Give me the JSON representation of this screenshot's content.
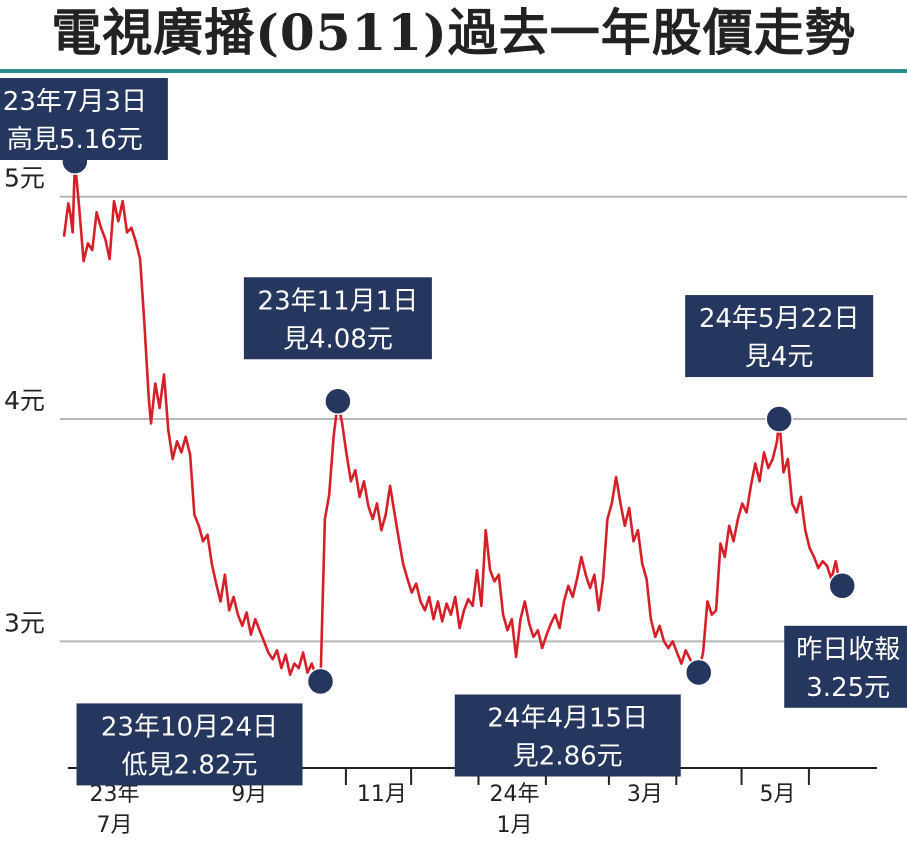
{
  "header": {
    "title": "電視廣播(0511)過去一年股價走勢"
  },
  "colors": {
    "line": "#d62029",
    "callout_bg": "#26375f",
    "marker": "#26375f",
    "title_rule": "#2a8f8d",
    "grid": "#b8b8b8",
    "axis": "#222222"
  },
  "chart_data": {
    "type": "line",
    "title": "電視廣播(0511)過去一年股價走勢",
    "xlabel": "",
    "ylabel": "",
    "ylim": [
      2.48,
      5.48
    ],
    "yticks": [
      {
        "value": 3,
        "label": "3元"
      },
      {
        "value": 4,
        "label": "4元"
      },
      {
        "value": 5,
        "label": "5元"
      }
    ],
    "xlim": [
      "2023-06-28",
      "2024-07-06"
    ],
    "xticks": [
      {
        "date": "2023-07-01",
        "label": [
          "23年",
          "7月"
        ]
      },
      {
        "date": "2023-09-01",
        "label": [
          "9月"
        ]
      },
      {
        "date": "2023-11-01",
        "label": [
          "11月"
        ]
      },
      {
        "date": "2024-01-01",
        "label": [
          "24年",
          "1月"
        ]
      },
      {
        "date": "2024-03-01",
        "label": [
          "3月"
        ]
      },
      {
        "date": "2024-05-01",
        "label": [
          "5月"
        ]
      }
    ],
    "grid": true,
    "series": [
      {
        "points": [
          [
            "2023-06-28",
            4.82
          ],
          [
            "2023-06-30",
            4.97
          ],
          [
            "2023-07-01",
            4.92
          ],
          [
            "2023-07-02",
            4.84
          ],
          [
            "2023-07-03",
            5.16
          ],
          [
            "2023-07-05",
            4.95
          ],
          [
            "2023-07-07",
            4.71
          ],
          [
            "2023-07-09",
            4.79
          ],
          [
            "2023-07-11",
            4.76
          ],
          [
            "2023-07-13",
            4.93
          ],
          [
            "2023-07-15",
            4.86
          ],
          [
            "2023-07-17",
            4.81
          ],
          [
            "2023-07-19",
            4.72
          ],
          [
            "2023-07-21",
            4.98
          ],
          [
            "2023-07-23",
            4.89
          ],
          [
            "2023-07-25",
            4.98
          ],
          [
            "2023-07-27",
            4.84
          ],
          [
            "2023-07-29",
            4.86
          ],
          [
            "2023-07-31",
            4.8
          ],
          [
            "2023-08-02",
            4.72
          ],
          [
            "2023-08-04",
            4.43
          ],
          [
            "2023-08-06",
            4.09
          ],
          [
            "2023-08-07",
            3.98
          ],
          [
            "2023-08-09",
            4.16
          ],
          [
            "2023-08-11",
            4.05
          ],
          [
            "2023-08-13",
            4.2
          ],
          [
            "2023-08-15",
            3.95
          ],
          [
            "2023-08-17",
            3.82
          ],
          [
            "2023-08-19",
            3.9
          ],
          [
            "2023-08-21",
            3.85
          ],
          [
            "2023-08-23",
            3.92
          ],
          [
            "2023-08-25",
            3.84
          ],
          [
            "2023-08-27",
            3.57
          ],
          [
            "2023-08-29",
            3.52
          ],
          [
            "2023-08-31",
            3.45
          ],
          [
            "2023-09-02",
            3.48
          ],
          [
            "2023-09-04",
            3.35
          ],
          [
            "2023-09-06",
            3.26
          ],
          [
            "2023-09-08",
            3.18
          ],
          [
            "2023-09-10",
            3.3
          ],
          [
            "2023-09-12",
            3.14
          ],
          [
            "2023-09-14",
            3.2
          ],
          [
            "2023-09-16",
            3.12
          ],
          [
            "2023-09-18",
            3.07
          ],
          [
            "2023-09-20",
            3.13
          ],
          [
            "2023-09-22",
            3.03
          ],
          [
            "2023-09-24",
            3.1
          ],
          [
            "2023-09-26",
            3.05
          ],
          [
            "2023-09-28",
            3.0
          ],
          [
            "2023-09-30",
            2.95
          ],
          [
            "2023-10-02",
            2.92
          ],
          [
            "2023-10-04",
            2.96
          ],
          [
            "2023-10-06",
            2.88
          ],
          [
            "2023-10-08",
            2.94
          ],
          [
            "2023-10-10",
            2.85
          ],
          [
            "2023-10-12",
            2.9
          ],
          [
            "2023-10-14",
            2.88
          ],
          [
            "2023-10-16",
            2.95
          ],
          [
            "2023-10-18",
            2.86
          ],
          [
            "2023-10-20",
            2.9
          ],
          [
            "2023-10-22",
            2.84
          ],
          [
            "2023-10-24",
            2.82
          ],
          [
            "2023-10-26",
            3.55
          ],
          [
            "2023-10-28",
            3.66
          ],
          [
            "2023-10-30",
            3.92
          ],
          [
            "2023-11-01",
            4.08
          ],
          [
            "2023-11-03",
            3.98
          ],
          [
            "2023-11-05",
            3.84
          ],
          [
            "2023-11-07",
            3.72
          ],
          [
            "2023-11-09",
            3.77
          ],
          [
            "2023-11-11",
            3.65
          ],
          [
            "2023-11-13",
            3.72
          ],
          [
            "2023-11-15",
            3.61
          ],
          [
            "2023-11-17",
            3.55
          ],
          [
            "2023-11-19",
            3.62
          ],
          [
            "2023-11-21",
            3.5
          ],
          [
            "2023-11-23",
            3.57
          ],
          [
            "2023-11-25",
            3.7
          ],
          [
            "2023-11-27",
            3.58
          ],
          [
            "2023-11-29",
            3.46
          ],
          [
            "2023-12-01",
            3.35
          ],
          [
            "2023-12-03",
            3.28
          ],
          [
            "2023-12-05",
            3.22
          ],
          [
            "2023-12-07",
            3.26
          ],
          [
            "2023-12-09",
            3.18
          ],
          [
            "2023-12-11",
            3.14
          ],
          [
            "2023-12-13",
            3.2
          ],
          [
            "2023-12-15",
            3.1
          ],
          [
            "2023-12-17",
            3.18
          ],
          [
            "2023-12-19",
            3.09
          ],
          [
            "2023-12-21",
            3.17
          ],
          [
            "2023-12-23",
            3.12
          ],
          [
            "2023-12-25",
            3.2
          ],
          [
            "2023-12-27",
            3.06
          ],
          [
            "2023-12-29",
            3.14
          ],
          [
            "2023-12-31",
            3.19
          ],
          [
            "2024-01-02",
            3.16
          ],
          [
            "2024-01-04",
            3.32
          ],
          [
            "2024-01-06",
            3.16
          ],
          [
            "2024-01-08",
            3.5
          ],
          [
            "2024-01-10",
            3.32
          ],
          [
            "2024-01-12",
            3.27
          ],
          [
            "2024-01-14",
            3.3
          ],
          [
            "2024-01-16",
            3.12
          ],
          [
            "2024-01-18",
            3.05
          ],
          [
            "2024-01-20",
            3.1
          ],
          [
            "2024-01-22",
            2.93
          ],
          [
            "2024-01-24",
            3.1
          ],
          [
            "2024-01-26",
            3.18
          ],
          [
            "2024-01-28",
            3.08
          ],
          [
            "2024-01-30",
            3.02
          ],
          [
            "2024-02-01",
            3.05
          ],
          [
            "2024-02-03",
            2.97
          ],
          [
            "2024-02-05",
            3.03
          ],
          [
            "2024-02-07",
            3.08
          ],
          [
            "2024-02-09",
            3.12
          ],
          [
            "2024-02-11",
            3.06
          ],
          [
            "2024-02-13",
            3.18
          ],
          [
            "2024-02-15",
            3.25
          ],
          [
            "2024-02-17",
            3.2
          ],
          [
            "2024-02-19",
            3.28
          ],
          [
            "2024-02-21",
            3.38
          ],
          [
            "2024-02-23",
            3.3
          ],
          [
            "2024-02-25",
            3.24
          ],
          [
            "2024-02-27",
            3.3
          ],
          [
            "2024-02-29",
            3.14
          ],
          [
            "2024-03-02",
            3.28
          ],
          [
            "2024-03-04",
            3.55
          ],
          [
            "2024-03-06",
            3.62
          ],
          [
            "2024-03-08",
            3.74
          ],
          [
            "2024-03-10",
            3.62
          ],
          [
            "2024-03-12",
            3.52
          ],
          [
            "2024-03-14",
            3.6
          ],
          [
            "2024-03-16",
            3.45
          ],
          [
            "2024-03-18",
            3.5
          ],
          [
            "2024-03-20",
            3.35
          ],
          [
            "2024-03-22",
            3.28
          ],
          [
            "2024-03-24",
            3.1
          ],
          [
            "2024-03-26",
            3.02
          ],
          [
            "2024-03-28",
            3.07
          ],
          [
            "2024-03-30",
            3.0
          ],
          [
            "2024-04-01",
            2.97
          ],
          [
            "2024-04-03",
            3.0
          ],
          [
            "2024-04-05",
            2.95
          ],
          [
            "2024-04-07",
            2.9
          ],
          [
            "2024-04-09",
            2.96
          ],
          [
            "2024-04-11",
            2.92
          ],
          [
            "2024-04-13",
            2.88
          ],
          [
            "2024-04-15",
            2.86
          ],
          [
            "2024-04-17",
            2.95
          ],
          [
            "2024-04-19",
            3.18
          ],
          [
            "2024-04-21",
            3.12
          ],
          [
            "2024-04-23",
            3.14
          ],
          [
            "2024-04-25",
            3.44
          ],
          [
            "2024-04-27",
            3.38
          ],
          [
            "2024-04-29",
            3.52
          ],
          [
            "2024-05-01",
            3.45
          ],
          [
            "2024-05-03",
            3.55
          ],
          [
            "2024-05-05",
            3.62
          ],
          [
            "2024-05-07",
            3.58
          ],
          [
            "2024-05-09",
            3.7
          ],
          [
            "2024-05-11",
            3.8
          ],
          [
            "2024-05-13",
            3.72
          ],
          [
            "2024-05-15",
            3.85
          ],
          [
            "2024-05-17",
            3.78
          ],
          [
            "2024-05-19",
            3.82
          ],
          [
            "2024-05-21",
            3.9
          ],
          [
            "2024-05-22",
            4.0
          ],
          [
            "2024-05-24",
            3.76
          ],
          [
            "2024-05-26",
            3.82
          ],
          [
            "2024-05-28",
            3.62
          ],
          [
            "2024-05-30",
            3.58
          ],
          [
            "2024-06-01",
            3.65
          ],
          [
            "2024-06-03",
            3.5
          ],
          [
            "2024-06-05",
            3.42
          ],
          [
            "2024-06-07",
            3.38
          ],
          [
            "2024-06-09",
            3.33
          ],
          [
            "2024-06-11",
            3.36
          ],
          [
            "2024-06-13",
            3.34
          ],
          [
            "2024-06-15",
            3.28
          ],
          [
            "2024-06-17",
            3.36
          ],
          [
            "2024-06-19",
            3.26
          ],
          [
            "2024-06-20",
            3.25
          ]
        ]
      }
    ],
    "annotations": [
      {
        "id": "high",
        "date": "2023-07-03",
        "value": 5.16,
        "lines": [
          "23年7月3日",
          "高見5.16元"
        ],
        "placement": "above"
      },
      {
        "id": "low-oct",
        "date": "2023-10-24",
        "value": 2.82,
        "lines": [
          "23年10月24日",
          "低見2.82元"
        ],
        "placement": "below-left"
      },
      {
        "id": "peak-nov",
        "date": "2023-11-01",
        "value": 4.08,
        "lines": [
          "23年11月1日",
          "見4.08元"
        ],
        "placement": "above"
      },
      {
        "id": "low-apr",
        "date": "2024-04-15",
        "value": 2.86,
        "lines": [
          "24年4月15日",
          "見2.86元"
        ],
        "placement": "below-left"
      },
      {
        "id": "peak-may",
        "date": "2024-05-22",
        "value": 4.0,
        "lines": [
          "24年5月22日",
          "見4元"
        ],
        "placement": "above"
      },
      {
        "id": "close",
        "date": "2024-06-20",
        "value": 3.25,
        "lines": [
          "昨日收報",
          "3.25元"
        ],
        "placement": "below"
      }
    ]
  }
}
